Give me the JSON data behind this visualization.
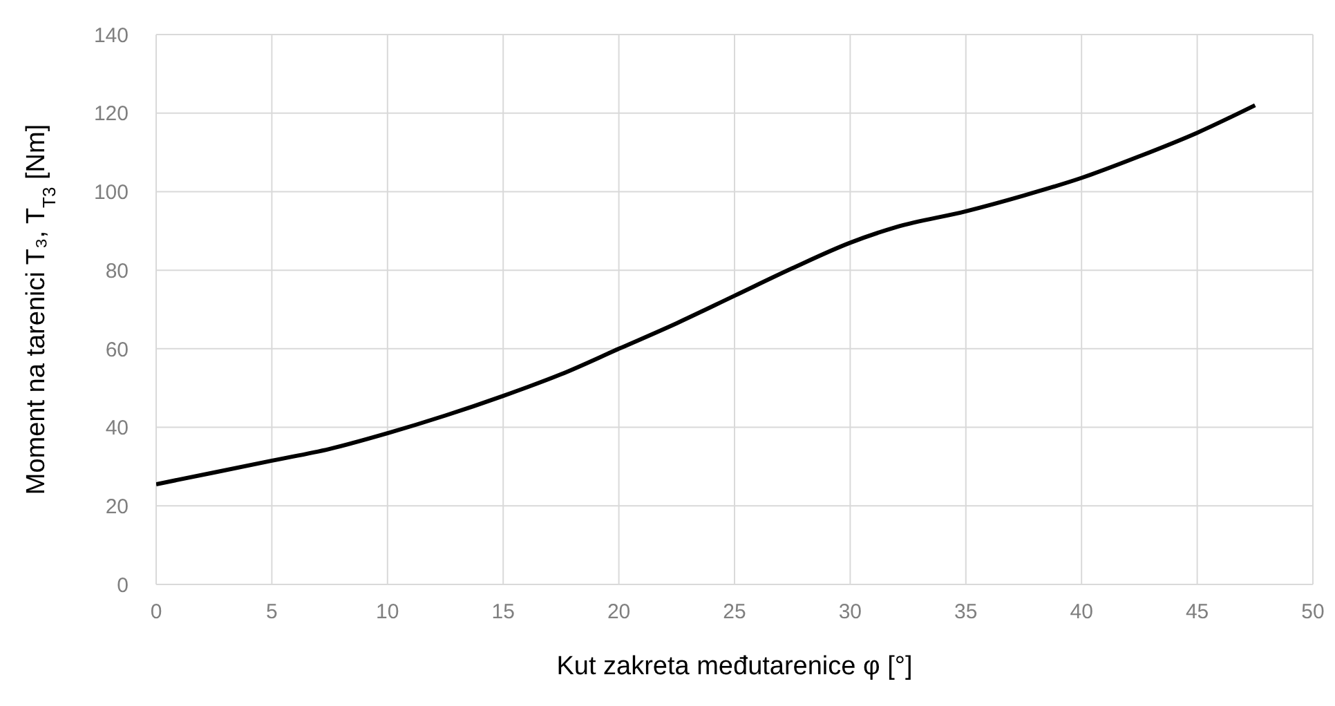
{
  "chart_data": {
    "type": "line",
    "xlabel": "Kut zakreta međutarenice φ [°]",
    "ylabel": "Moment na tarenici T₃, T$_{T3}$ [Nm]",
    "x": [
      0,
      2.5,
      5,
      7.5,
      10,
      12.5,
      15,
      17.5,
      20,
      22.5,
      25,
      27.5,
      30,
      32,
      35,
      37.5,
      40,
      42.5,
      45,
      47.5
    ],
    "series": [
      {
        "color": "#000000",
        "values": [
          25.5,
          28.5,
          31.5,
          34.5,
          38.5,
          43,
          48,
          53.5,
          60,
          66.5,
          73.5,
          80.5,
          87,
          91,
          95,
          99,
          103.5,
          109,
          115,
          122
        ]
      }
    ],
    "xlim": [
      0,
      50
    ],
    "xticks": [
      0,
      5,
      10,
      15,
      20,
      25,
      30,
      35,
      40,
      45,
      50
    ],
    "ylim": [
      0,
      140
    ],
    "yticks": [
      0,
      20,
      40,
      60,
      80,
      100,
      120,
      140
    ],
    "grid": true,
    "marker": "none",
    "line_style": "solid"
  }
}
